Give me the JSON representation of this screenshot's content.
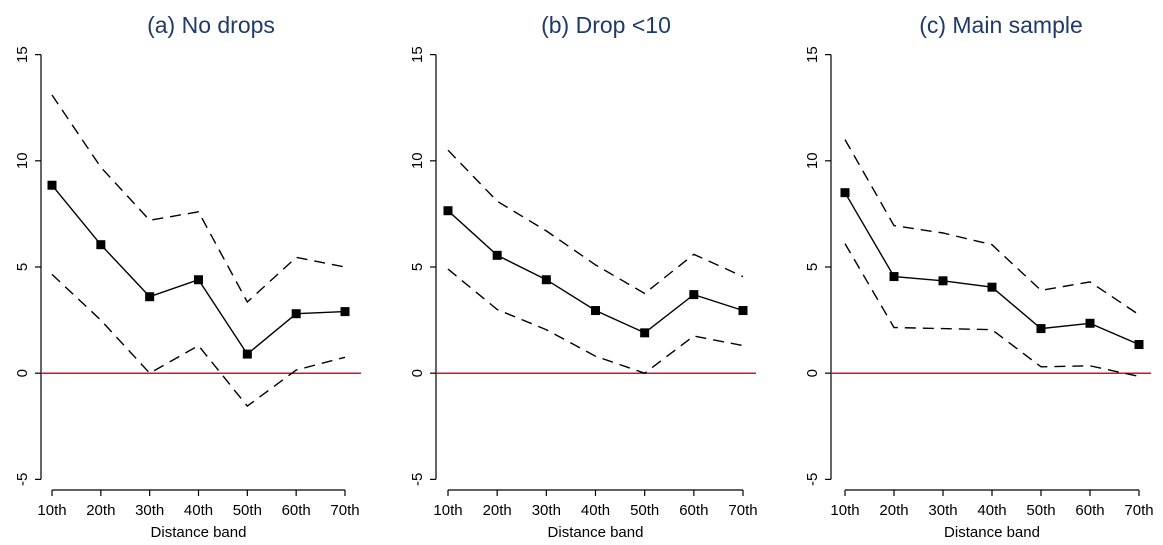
{
  "chart_data": [
    {
      "type": "line",
      "title": "(a) No drops",
      "xlabel": "Distance band",
      "ylabel": "",
      "categories": [
        "10th",
        "20th",
        "30th",
        "40th",
        "50th",
        "60th",
        "70th"
      ],
      "ylim": [
        -5.5,
        15.5
      ],
      "yticks": [
        -5,
        0,
        5,
        10,
        15
      ],
      "reference_line": {
        "y": 0,
        "color": "#d0142c"
      },
      "series": [
        {
          "values": [
            8.85,
            6.05,
            3.6,
            4.4,
            0.9,
            2.8,
            2.9
          ],
          "style": "solid",
          "markers": "square",
          "color": "#000000"
        },
        {
          "values": [
            13.1,
            9.7,
            7.2,
            7.6,
            3.35,
            5.45,
            5.0
          ],
          "style": "dashed",
          "markers": "none",
          "color": "#000000"
        },
        {
          "values": [
            4.65,
            2.5,
            0.0,
            1.3,
            -1.55,
            0.15,
            0.75
          ],
          "style": "dashed",
          "markers": "none",
          "color": "#000000"
        }
      ]
    },
    {
      "type": "line",
      "title": "(b) Drop <10",
      "xlabel": "Distance band",
      "ylabel": "",
      "categories": [
        "10th",
        "20th",
        "30th",
        "40th",
        "50th",
        "60th",
        "70th"
      ],
      "ylim": [
        -5.5,
        15.5
      ],
      "yticks": [
        -5,
        0,
        5,
        10,
        15
      ],
      "reference_line": {
        "y": 0,
        "color": "#d0142c"
      },
      "series": [
        {
          "values": [
            7.65,
            5.55,
            4.4,
            2.95,
            1.9,
            3.7,
            2.95
          ],
          "style": "solid",
          "markers": "square",
          "color": "#000000"
        },
        {
          "values": [
            10.5,
            8.1,
            6.7,
            5.1,
            3.75,
            5.6,
            4.55
          ],
          "style": "dashed",
          "markers": "none",
          "color": "#000000"
        },
        {
          "values": [
            4.9,
            3.0,
            2.05,
            0.8,
            0.0,
            1.75,
            1.3
          ],
          "style": "dashed",
          "markers": "none",
          "color": "#000000"
        }
      ]
    },
    {
      "type": "line",
      "title": "(c) Main sample",
      "xlabel": "Distance band",
      "ylabel": "",
      "categories": [
        "10th",
        "20th",
        "30th",
        "40th",
        "50th",
        "60th",
        "70th"
      ],
      "ylim": [
        -5.5,
        15.5
      ],
      "yticks": [
        -5,
        0,
        5,
        10,
        15
      ],
      "reference_line": {
        "y": 0,
        "color": "#d0142c"
      },
      "series": [
        {
          "values": [
            8.5,
            4.55,
            4.35,
            4.05,
            2.1,
            2.35,
            1.35
          ],
          "style": "solid",
          "markers": "square",
          "color": "#000000"
        },
        {
          "values": [
            11.0,
            6.95,
            6.6,
            6.05,
            3.9,
            4.3,
            2.75
          ],
          "style": "dashed",
          "markers": "none",
          "color": "#000000"
        },
        {
          "values": [
            6.1,
            2.15,
            2.1,
            2.05,
            0.3,
            0.35,
            -0.15
          ],
          "style": "dashed",
          "markers": "none",
          "color": "#000000"
        }
      ]
    }
  ]
}
